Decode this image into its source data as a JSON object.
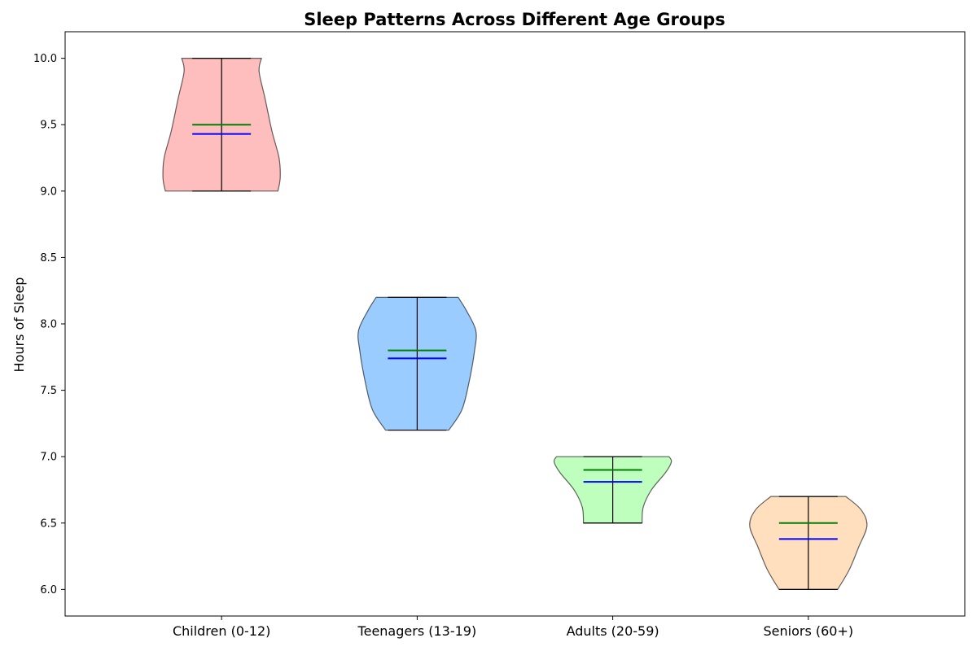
{
  "chart_data": {
    "type": "violin",
    "title": "Sleep Patterns Across Different Age Groups",
    "xlabel": "",
    "ylabel": "Hours of Sleep",
    "ylim": [
      5.8,
      10.2
    ],
    "yticks": [
      "6.0",
      "6.5",
      "7.0",
      "7.5",
      "8.0",
      "8.5",
      "9.0",
      "9.5",
      "10.0"
    ],
    "grid": false,
    "legend": "none",
    "categories": [
      "Children (0-12)",
      "Teenagers (13-19)",
      "Adults (20-59)",
      "Seniors (60+)"
    ],
    "series": [
      {
        "category": "Children (0-12)",
        "color": "#ffb3b3",
        "min": 9.0,
        "max": 10.0,
        "median": 9.5,
        "mean": 9.43,
        "density": [
          [
            9.0,
            0.48
          ],
          [
            9.1,
            0.5
          ],
          [
            9.25,
            0.49
          ],
          [
            9.45,
            0.43
          ],
          [
            9.7,
            0.37
          ],
          [
            9.9,
            0.32
          ],
          [
            10.0,
            0.34
          ]
        ]
      },
      {
        "category": "Teenagers (13-19)",
        "color": "#88c3ff",
        "min": 7.2,
        "max": 8.2,
        "median": 7.8,
        "mean": 7.74,
        "density": [
          [
            7.2,
            0.27
          ],
          [
            7.35,
            0.38
          ],
          [
            7.55,
            0.44
          ],
          [
            7.8,
            0.49
          ],
          [
            7.95,
            0.5
          ],
          [
            8.1,
            0.42
          ],
          [
            8.2,
            0.35
          ]
        ]
      },
      {
        "category": "Adults (20-59)",
        "color": "#b3ffb3",
        "min": 6.5,
        "max": 7.0,
        "median": 6.9,
        "mean": 6.81,
        "density": [
          [
            6.5,
            0.25
          ],
          [
            6.62,
            0.26
          ],
          [
            6.75,
            0.33
          ],
          [
            6.88,
            0.45
          ],
          [
            6.96,
            0.5
          ],
          [
            7.0,
            0.48
          ]
        ]
      },
      {
        "category": "Seniors (60+)",
        "color": "#ffd9b3",
        "min": 6.0,
        "max": 6.7,
        "median": 6.5,
        "mean": 6.38,
        "density": [
          [
            6.0,
            0.25
          ],
          [
            6.15,
            0.35
          ],
          [
            6.32,
            0.43
          ],
          [
            6.48,
            0.5
          ],
          [
            6.6,
            0.45
          ],
          [
            6.7,
            0.32
          ]
        ]
      }
    ],
    "median_color": "#008000",
    "mean_color": "#0000ff"
  }
}
